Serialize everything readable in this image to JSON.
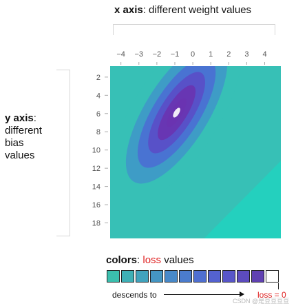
{
  "x_axis_label": {
    "bold": "x axis",
    "rest": ": different weight values"
  },
  "y_axis_label": {
    "bold": "y axis",
    "rest": ":",
    "lines": [
      "different",
      "bias",
      "values"
    ]
  },
  "colors_label": {
    "bold": "colors",
    "sep": ": ",
    "red": "loss",
    "rest": " values"
  },
  "descends_label": "descends to",
  "loss_zero_label": "loss = 0",
  "watermark": "CSDN @是豆豆豆豆",
  "swatch_colors": [
    "#3bbfae",
    "#3eb0b6",
    "#41a3bd",
    "#4596c3",
    "#4889c9",
    "#4b7ccd",
    "#4f6fd1",
    "#5462d0",
    "#5856c9",
    "#5c4bbe",
    "#6041b2",
    "#ffffff"
  ],
  "chart_data": {
    "type": "heatmap",
    "x_ticks": [
      "−4",
      "−3",
      "−2",
      "−1",
      "0",
      "1",
      "2",
      "3",
      "4"
    ],
    "y_ticks": [
      "2",
      "4",
      "6",
      "8",
      "10",
      "12",
      "14",
      "16",
      "18"
    ],
    "xlim": [
      -4.6,
      4.9
    ],
    "ylim": [
      0.8,
      19.7
    ],
    "x_ticks_position": "top",
    "minimum": {
      "x": -0.9,
      "y": 5.9
    },
    "colorscale": [
      "#ffffff",
      "#6a33b0",
      "#5a4ec7",
      "#4a6fd3",
      "#3f98c8",
      "#37c0b6",
      "#22d2bf"
    ]
  }
}
